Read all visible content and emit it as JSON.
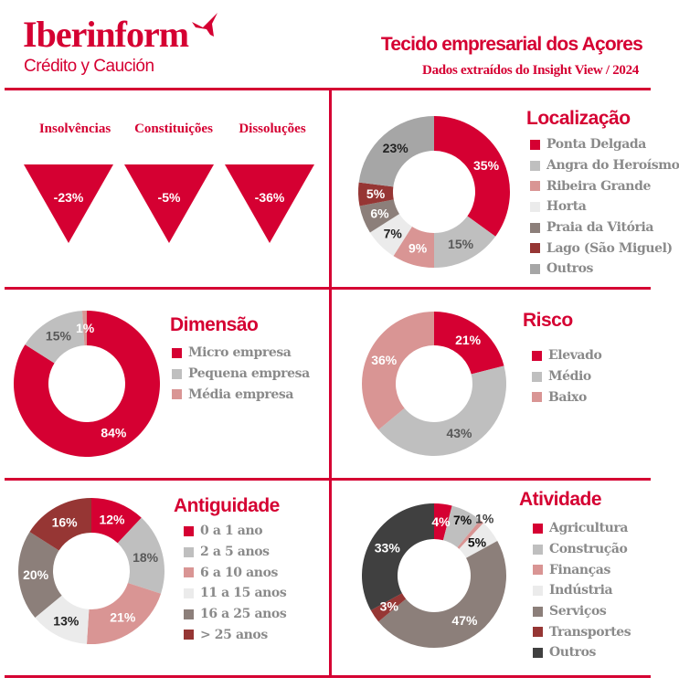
{
  "header": {
    "logo": "Iberinform",
    "logo_sub": "Crédito y Caución",
    "title": "Tecido empresarial dos Açores",
    "subtitle": "Dados extraídos do Insight View / 2024"
  },
  "indicators": [
    {
      "label": "Insolvências",
      "value": "-23%"
    },
    {
      "label": "Constituições",
      "value": "-5%"
    },
    {
      "label": "Dissoluções",
      "value": "-36%"
    }
  ],
  "chart_data": [
    {
      "type": "pie",
      "title": "Localização",
      "categories": [
        "Ponta Delgada",
        "Angra do Heroísmo",
        "Ribeira Grande",
        "Horta",
        "Praia da Vitória",
        "Lago (São Miguel)",
        "Outros"
      ],
      "values": [
        35,
        15,
        9,
        7,
        6,
        5,
        23
      ],
      "labels": [
        "35%",
        "15%",
        "9%",
        "7%",
        "6%",
        "5%",
        "23%"
      ],
      "colors": [
        "#d50032",
        "#bfbfbf",
        "#d99594",
        "#ebebeb",
        "#8c7f7a",
        "#963634",
        "#a6a6a6"
      ],
      "label_colors": [
        "#fff",
        "#595959",
        "#fff",
        "#222",
        "#fff",
        "#fff",
        "#222"
      ]
    },
    {
      "type": "pie",
      "title": "Dimensão",
      "categories": [
        "Micro empresa",
        "Pequena empresa",
        "Média empresa"
      ],
      "values": [
        84,
        15,
        1
      ],
      "labels": [
        "84%",
        "15%",
        "1%"
      ],
      "colors": [
        "#d50032",
        "#bfbfbf",
        "#d99594"
      ],
      "label_colors": [
        "#fff",
        "#595959",
        "#fff"
      ]
    },
    {
      "type": "pie",
      "title": "Risco",
      "categories": [
        "Elevado",
        "Médio",
        "Baixo"
      ],
      "values": [
        21,
        43,
        36
      ],
      "labels": [
        "21%",
        "43%",
        "36%"
      ],
      "colors": [
        "#d50032",
        "#bfbfbf",
        "#d99594"
      ],
      "label_colors": [
        "#fff",
        "#595959",
        "#fff"
      ]
    },
    {
      "type": "pie",
      "title": "Antiguidade",
      "categories": [
        "0 a 1 ano",
        "2 a 5 anos",
        "6 a 10 anos",
        "11 a 15 anos",
        "16 a 25 anos",
        "> 25 anos"
      ],
      "values": [
        12,
        18,
        21,
        13,
        20,
        16
      ],
      "labels": [
        "12%",
        "18%",
        "21%",
        "13%",
        "20%",
        "16%"
      ],
      "colors": [
        "#d50032",
        "#bfbfbf",
        "#d99594",
        "#ebebeb",
        "#8c7f7a",
        "#963634"
      ],
      "label_colors": [
        "#fff",
        "#595959",
        "#fff",
        "#222",
        "#fff",
        "#fff"
      ]
    },
    {
      "type": "pie",
      "title": "Atividade",
      "categories": [
        "Agricultura",
        "Construção",
        "Finanças",
        "Indústria",
        "Serviços",
        "Transportes",
        "Outros"
      ],
      "values": [
        4,
        7,
        1,
        5,
        47,
        3,
        33
      ],
      "labels": [
        "4%",
        "7%",
        "1%",
        "5%",
        "47%",
        "3%",
        "33%"
      ],
      "colors": [
        "#d50032",
        "#bfbfbf",
        "#d99594",
        "#ebebeb",
        "#8c7f7a",
        "#963634",
        "#404040"
      ],
      "label_colors": [
        "#fff",
        "#111",
        "#fff",
        "#111",
        "#fff",
        "#fff",
        "#fff"
      ]
    }
  ]
}
